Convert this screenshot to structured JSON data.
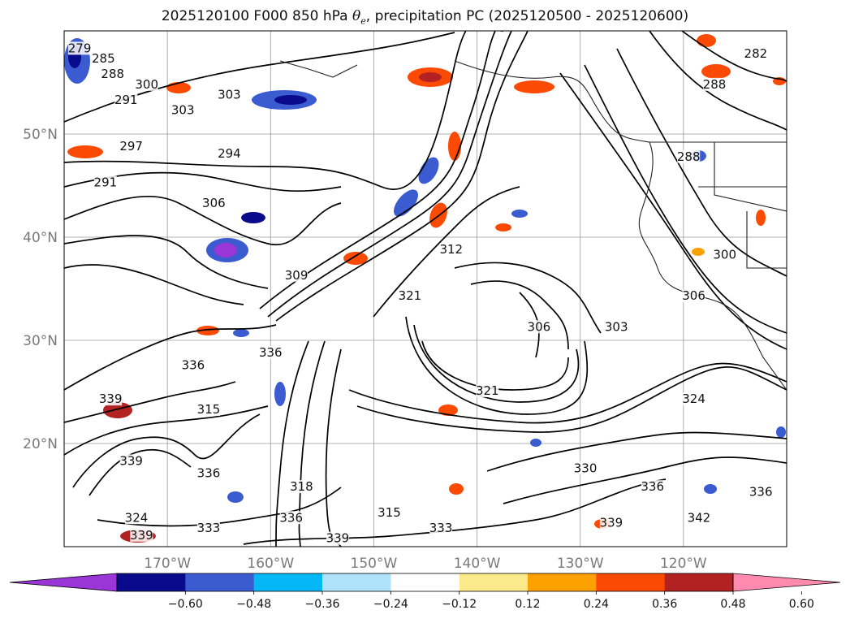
{
  "title": {
    "prefix": "2025120100 F000 850 hPa ",
    "symbol_base": "θ",
    "symbol_sub": "e",
    "suffix": ", precipitation PC (2025120500 - 2025120600)"
  },
  "map": {
    "lon_range": [
      -180,
      -110
    ],
    "lat_range": [
      10,
      60
    ],
    "lat_ticks": [
      {
        "value": 20,
        "label": "20°N"
      },
      {
        "value": 30,
        "label": "30°N"
      },
      {
        "value": 40,
        "label": "40°N"
      },
      {
        "value": 50,
        "label": "50°N"
      }
    ],
    "lon_ticks": [
      {
        "value": -170,
        "label": "170°W"
      },
      {
        "value": -160,
        "label": "160°W"
      },
      {
        "value": -150,
        "label": "150°W"
      },
      {
        "value": -140,
        "label": "140°W"
      },
      {
        "value": -130,
        "label": "130°W"
      },
      {
        "value": -120,
        "label": "120°W"
      }
    ],
    "contour_labels": [
      {
        "text": "279",
        "lon": -178.5,
        "lat": 58.0
      },
      {
        "text": "285",
        "lon": -176.2,
        "lat": 57.0
      },
      {
        "text": "288",
        "lon": -175.3,
        "lat": 55.5
      },
      {
        "text": "300",
        "lon": -172.0,
        "lat": 54.5
      },
      {
        "text": "291",
        "lon": -174.0,
        "lat": 53.0
      },
      {
        "text": "303",
        "lon": -164.0,
        "lat": 53.5
      },
      {
        "text": "303",
        "lon": -168.5,
        "lat": 52.0
      },
      {
        "text": "297",
        "lon": -173.5,
        "lat": 48.5
      },
      {
        "text": "294",
        "lon": -164.0,
        "lat": 47.8
      },
      {
        "text": "291",
        "lon": -176.0,
        "lat": 45.0
      },
      {
        "text": "306",
        "lon": -165.5,
        "lat": 43.0
      },
      {
        "text": "309",
        "lon": -157.5,
        "lat": 36.0
      },
      {
        "text": "312",
        "lon": -142.5,
        "lat": 38.5
      },
      {
        "text": "321",
        "lon": -146.5,
        "lat": 34.0
      },
      {
        "text": "306",
        "lon": -134.0,
        "lat": 31.0
      },
      {
        "text": "303",
        "lon": -126.5,
        "lat": 31.0
      },
      {
        "text": "306",
        "lon": -119.0,
        "lat": 34.0
      },
      {
        "text": "300",
        "lon": -116.0,
        "lat": 38.0
      },
      {
        "text": "288",
        "lon": -119.5,
        "lat": 47.5
      },
      {
        "text": "282",
        "lon": -113.0,
        "lat": 57.5
      },
      {
        "text": "288",
        "lon": -117.0,
        "lat": 54.5
      },
      {
        "text": "336",
        "lon": -167.5,
        "lat": 27.3
      },
      {
        "text": "336",
        "lon": -160.0,
        "lat": 28.5
      },
      {
        "text": "339",
        "lon": -175.5,
        "lat": 24.0
      },
      {
        "text": "315",
        "lon": -166.0,
        "lat": 23.0
      },
      {
        "text": "339",
        "lon": -173.5,
        "lat": 18.0
      },
      {
        "text": "336",
        "lon": -166.0,
        "lat": 16.8
      },
      {
        "text": "324",
        "lon": -173.0,
        "lat": 12.5
      },
      {
        "text": "339",
        "lon": -172.5,
        "lat": 10.8
      },
      {
        "text": "333",
        "lon": -166.0,
        "lat": 11.5
      },
      {
        "text": "336",
        "lon": -158.0,
        "lat": 12.5
      },
      {
        "text": "339",
        "lon": -153.5,
        "lat": 10.5
      },
      {
        "text": "318",
        "lon": -157.0,
        "lat": 15.5
      },
      {
        "text": "315",
        "lon": -148.5,
        "lat": 13.0
      },
      {
        "text": "333",
        "lon": -143.5,
        "lat": 11.5
      },
      {
        "text": "330",
        "lon": -129.5,
        "lat": 17.3
      },
      {
        "text": "321",
        "lon": -139.0,
        "lat": 24.8
      },
      {
        "text": "324",
        "lon": -119.0,
        "lat": 24.0
      },
      {
        "text": "336",
        "lon": -123.0,
        "lat": 15.5
      },
      {
        "text": "339",
        "lon": -127.0,
        "lat": 12.0
      },
      {
        "text": "342",
        "lon": -118.5,
        "lat": 12.5
      },
      {
        "text": "336",
        "lon": -112.5,
        "lat": 15.0
      }
    ],
    "colors": {
      "contour": "#000000",
      "grid": "#999999",
      "coast": "#222222"
    }
  },
  "colorbar": {
    "colors": [
      "#9a35d8",
      "#0a0a8c",
      "#3b5bd1",
      "#03b8f5",
      "#b1e2fb",
      "#ffffff",
      "#fbe98c",
      "#fca100",
      "#fb4a04",
      "#b22222",
      "#ff8ab0"
    ],
    "ticks": [
      "−0.60",
      "−0.48",
      "−0.36",
      "−0.24",
      "−0.12",
      "0.12",
      "0.24",
      "0.36",
      "0.48",
      "0.60"
    ]
  }
}
